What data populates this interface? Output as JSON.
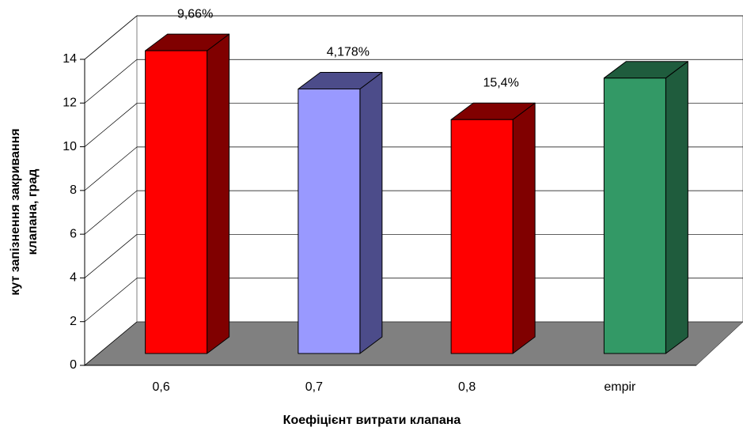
{
  "chart_data": {
    "type": "bar3d",
    "x_label": "Коефіцієнт витрати клапана",
    "y_label": [
      "кут запізнення закривання",
      "клапана, град"
    ],
    "categories": [
      "0,6",
      "0,7",
      "0,8",
      "empir"
    ],
    "values": [
      13.85,
      12.1,
      10.7,
      12.6
    ],
    "colors": [
      "#ff0000",
      "#9999ff",
      "#ff0000",
      "#339966"
    ],
    "side_colors": [
      "#800000",
      "#4c4c8a",
      "#800000",
      "#1f5c3d"
    ],
    "annotations": [
      "9,66%",
      "4,178%",
      "15,4%",
      null
    ],
    "ylim": [
      0,
      14
    ],
    "yticks": [
      0,
      2,
      4,
      6,
      8,
      10,
      12,
      14
    ],
    "grid": true
  }
}
